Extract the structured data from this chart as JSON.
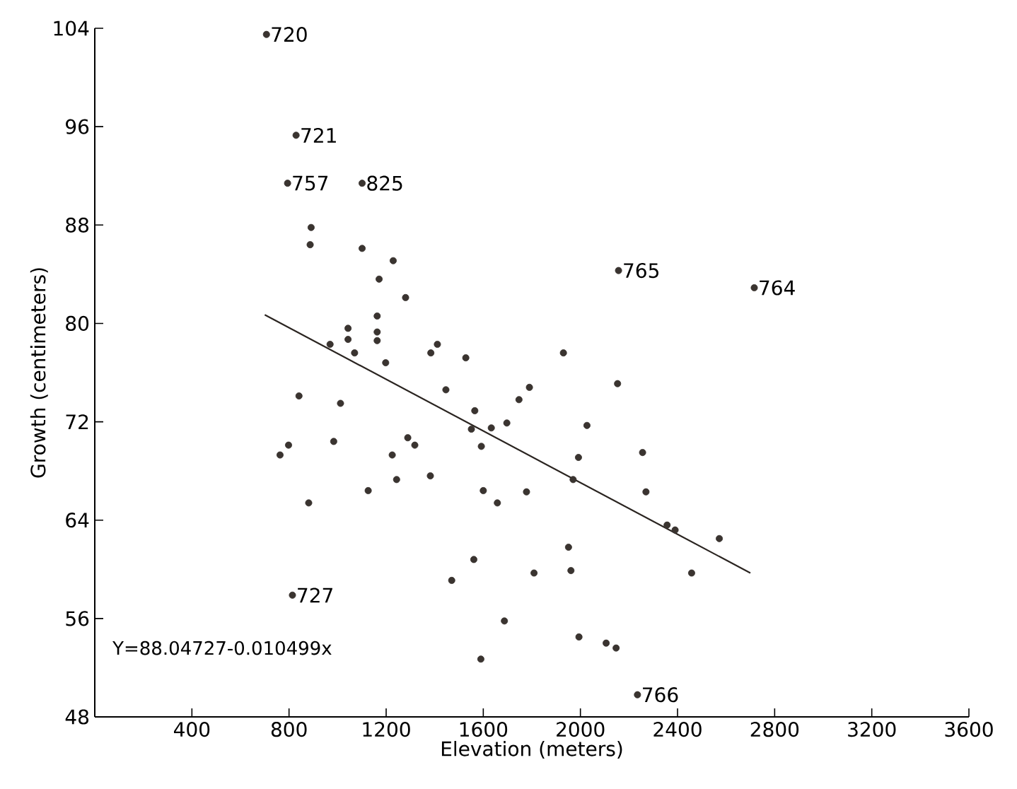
{
  "chart_data": {
    "type": "scatter",
    "xlabel": "Elevation (meters)",
    "ylabel": "Growth (centimeters)",
    "xlim": [
      0,
      3600
    ],
    "ylim": [
      48,
      104
    ],
    "marker": "circle",
    "xticks": [
      400,
      800,
      1200,
      1600,
      2000,
      2400,
      2800,
      3200,
      3600
    ],
    "yticks": [
      48,
      56,
      64,
      72,
      80,
      88,
      96,
      104
    ],
    "series": [
      {
        "color": "#3a3430",
        "x": [
          707,
          829,
          794,
          1101,
          891,
          887,
          1101,
          1229,
          1171,
          1280,
          1163,
          1043,
          1043,
          1163,
          1163,
          969,
          1070,
          1198,
          1411,
          1384,
          1528,
          1930,
          2157,
          2716,
          2153,
          841,
          1012,
          1446,
          1790,
          1747,
          1565,
          1551,
          1633,
          1697,
          2027,
          798,
          763,
          984,
          1289,
          1318,
          1225,
          1592,
          1992,
          1243,
          1382,
          1970,
          1126,
          881,
          1600,
          1658,
          1778,
          1951,
          1561,
          1961,
          1809,
          1470,
          814,
          1687,
          1994,
          2106,
          2147,
          1590,
          2256,
          2270,
          2357,
          2390,
          2572,
          2458,
          2235
        ],
        "values": [
          103.5,
          95.3,
          91.4,
          91.4,
          87.8,
          86.4,
          86.1,
          85.1,
          83.6,
          82.1,
          80.6,
          79.6,
          78.7,
          79.3,
          78.6,
          78.3,
          77.6,
          76.8,
          78.3,
          77.6,
          77.2,
          77.6,
          84.3,
          82.9,
          75.1,
          74.1,
          73.5,
          74.6,
          74.8,
          73.8,
          72.9,
          71.4,
          71.5,
          71.9,
          71.7,
          70.1,
          69.3,
          70.4,
          70.7,
          70.1,
          69.3,
          70.0,
          69.1,
          67.3,
          67.6,
          67.3,
          66.4,
          65.4,
          66.4,
          65.4,
          66.3,
          61.8,
          60.8,
          59.9,
          59.7,
          59.1,
          57.9,
          55.8,
          54.5,
          54.0,
          53.6,
          52.7,
          69.5,
          66.3,
          63.6,
          63.2,
          62.5,
          59.7,
          49.8
        ]
      },
      {
        "type": "line",
        "marker": "none",
        "color": "#2a2420",
        "x": [
          700,
          2700
        ],
        "values": [
          80.7,
          59.7
        ]
      }
    ],
    "annotations": [
      {
        "text": "720",
        "x": 707,
        "y": 103.5
      },
      {
        "text": "721",
        "x": 829,
        "y": 95.3
      },
      {
        "text": "757",
        "x": 794,
        "y": 91.4
      },
      {
        "text": "825",
        "x": 1101,
        "y": 91.4
      },
      {
        "text": "765",
        "x": 2157,
        "y": 84.3
      },
      {
        "text": "764",
        "x": 2716,
        "y": 82.9
      },
      {
        "text": "727",
        "x": 814,
        "y": 57.9
      },
      {
        "text": "766",
        "x": 2235,
        "y": 49.8
      },
      "Y=88.04727-0.010499x"
    ]
  }
}
